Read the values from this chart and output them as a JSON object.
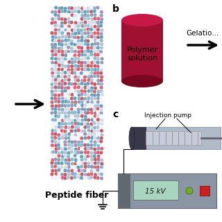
{
  "bg_color": "#ffffff",
  "panel_b_label": "b",
  "panel_c_label": "c",
  "peptide_fiber_label": "Peptide fiber",
  "polymer_solution_label": "Polymer\nsolution",
  "gelation_label": "Gelatio...",
  "injection_pump_label": "Injection pump",
  "voltage_label": "15 kV",
  "arrow_color": "#000000",
  "cylinder_body_color": "#a01030",
  "cylinder_top_color": "#c81848",
  "cylinder_bottom_color": "#780820",
  "fiber_bg": "#ffffff",
  "sphere_colors": [
    "#d0dce8",
    "#e06070",
    "#80b8cc",
    "#f0f4f8",
    "#b0c4d4",
    "#9898b8",
    "#60a0b8",
    "#c85868"
  ],
  "box_color": "#8a9aaa",
  "pump_dark_color": "#404050",
  "pump_light_color": "#b8c4d4",
  "label_fontsize": 8,
  "panel_fontsize": 10,
  "peptide_fontsize": 9
}
